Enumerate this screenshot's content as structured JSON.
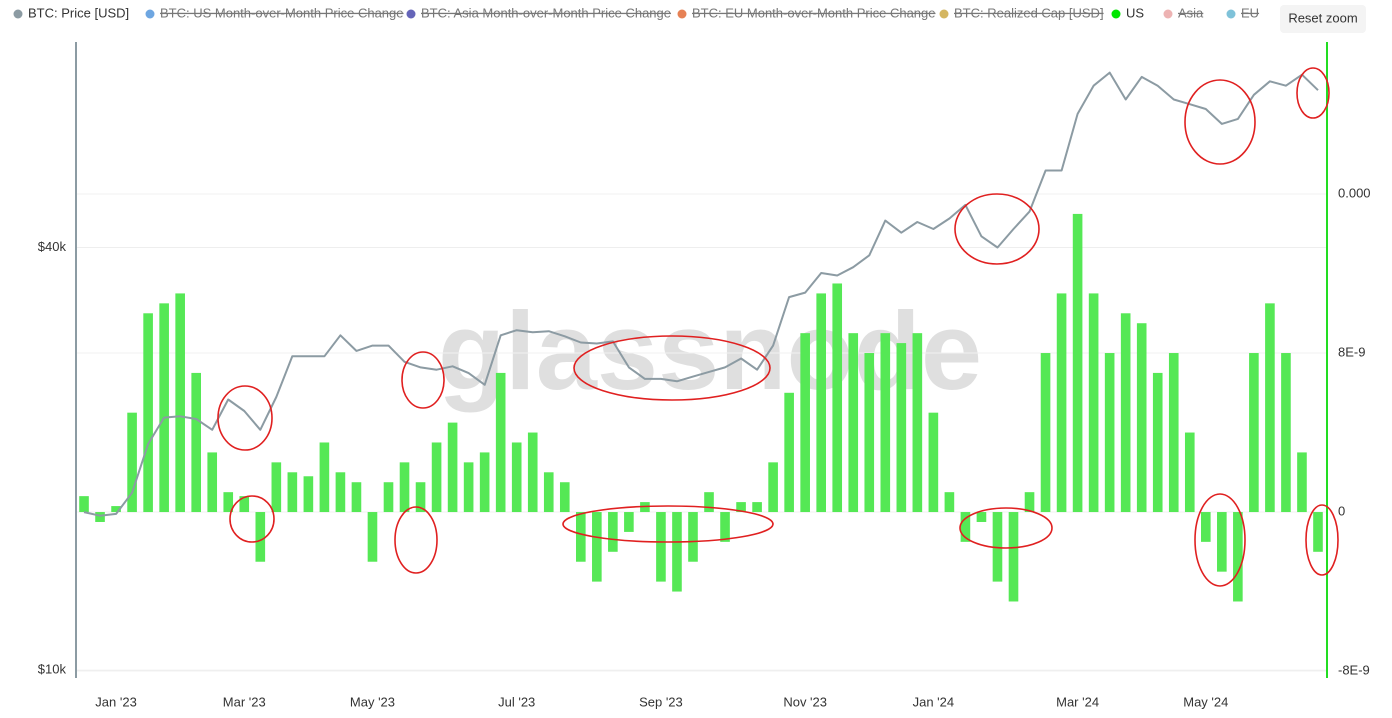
{
  "chart_data": {
    "type": "combo",
    "watermark": "glassnode",
    "reset_button": "Reset zoom",
    "legend": [
      {
        "name": "BTC: Price [USD]",
        "color": "#8c9ba3",
        "hidden": false
      },
      {
        "name": "BTC: US Month-over-Month Price Change",
        "color": "#4a90d9",
        "hidden": true
      },
      {
        "name": "BTC: Asia Month-over-Month Price Change",
        "color": "#3f3fa8",
        "hidden": true
      },
      {
        "name": "BTC: EU Month-over-Month Price Change",
        "color": "#e0622a",
        "hidden": true
      },
      {
        "name": "BTC: Realized Cap [USD]",
        "color": "#c9a43a",
        "hidden": true
      },
      {
        "name": "US",
        "color": "#00e600",
        "hidden": false
      },
      {
        "name": "Asia",
        "color": "#e8a0a0",
        "hidden": true
      },
      {
        "name": "EU",
        "color": "#5fb3d0",
        "hidden": true
      }
    ],
    "categories": [
      null,
      null,
      "Jan '23",
      null,
      null,
      null,
      null,
      null,
      null,
      null,
      "Mar '23",
      null,
      null,
      null,
      null,
      null,
      null,
      null,
      "May '23",
      null,
      null,
      null,
      null,
      null,
      null,
      null,
      null,
      "Jul '23",
      null,
      null,
      null,
      null,
      null,
      null,
      null,
      null,
      "Sep '23",
      null,
      null,
      null,
      null,
      null,
      null,
      null,
      null,
      "Nov '23",
      null,
      null,
      null,
      null,
      null,
      null,
      null,
      "Jan '24",
      null,
      null,
      null,
      null,
      null,
      null,
      null,
      null,
      "Mar '24",
      null,
      null,
      null,
      null,
      null,
      null,
      null,
      "May '24",
      null,
      null,
      null,
      null,
      null,
      null,
      null
    ],
    "series": [
      {
        "name": "BTC: Price [USD]",
        "type": "line",
        "axis": "y",
        "color": "#8c9ba3",
        "values": [
          16800,
          16600,
          16700,
          17900,
          21000,
          22900,
          23000,
          22800,
          22000,
          24300,
          23400,
          22000,
          24500,
          28000,
          28000,
          28000,
          30000,
          28500,
          29000,
          29000,
          27500,
          27000,
          26800,
          27100,
          26500,
          25500,
          30000,
          30500,
          30300,
          30400,
          29900,
          29300,
          29200,
          29400,
          27000,
          26000,
          26000,
          25800,
          26200,
          26600,
          27000,
          27800,
          26800,
          29000,
          34000,
          34500,
          36800,
          36500,
          37500,
          39000,
          43700,
          42000,
          43500,
          42500,
          44000,
          46000,
          41500,
          40000,
          42500,
          45000,
          51500,
          51500,
          62000,
          68000,
          71000,
          65000,
          70000,
          68000,
          65000,
          64000,
          63000,
          60000,
          61000,
          66000,
          69000,
          68000,
          70500,
          67000
        ]
      },
      {
        "name": "US",
        "type": "bar",
        "axis": "y2",
        "color": "#55e855",
        "values": [
          8e-10,
          -5e-10,
          3e-10,
          5e-09,
          1e-08,
          1.05e-08,
          1.1e-08,
          7e-09,
          3e-09,
          1e-09,
          8e-10,
          -2.5e-09,
          2.5e-09,
          2e-09,
          1.8e-09,
          3.5e-09,
          2e-09,
          1.5e-09,
          -2.5e-09,
          1.5e-09,
          2.5e-09,
          1.5e-09,
          3.5e-09,
          4.5e-09,
          2.5e-09,
          3e-09,
          7e-09,
          3.5e-09,
          4e-09,
          2e-09,
          1.5e-09,
          -2.5e-09,
          -3.5e-09,
          -2e-09,
          -1e-09,
          5e-10,
          -3.5e-09,
          -4e-09,
          -2.5e-09,
          1e-09,
          -1.5e-09,
          5e-10,
          5e-10,
          2.5e-09,
          6e-09,
          9e-09,
          1.1e-08,
          1.15e-08,
          9e-09,
          8e-09,
          9e-09,
          8.5e-09,
          9e-09,
          5e-09,
          1e-09,
          -1.5e-09,
          -5e-10,
          -3.5e-09,
          -4.5e-09,
          1e-09,
          8e-09,
          1.1e-08,
          1.5e-08,
          1.1e-08,
          8e-09,
          1e-08,
          9.5e-09,
          7e-09,
          8e-09,
          4e-09,
          -1.5e-09,
          -3e-09,
          -4.5e-09,
          8e-09,
          1.05e-08,
          8e-09,
          3e-09,
          -2e-09
        ]
      }
    ],
    "log_y": true,
    "ylim": [
      9750,
      79000
    ],
    "yticks": [
      {
        "value": 10000,
        "label": "$10k"
      },
      {
        "value": 40000,
        "label": "$40k"
      }
    ],
    "y2lim": [
      -8.35e-09,
      2.375e-08
    ],
    "y2ticks": [
      {
        "value": -8e-09,
        "label": "-8E-9"
      },
      0,
      {
        "value": 8e-09,
        "label": "8E-9"
      },
      {
        "value": 1.6e-08,
        "label": "0.000"
      }
    ],
    "grid": true
  }
}
